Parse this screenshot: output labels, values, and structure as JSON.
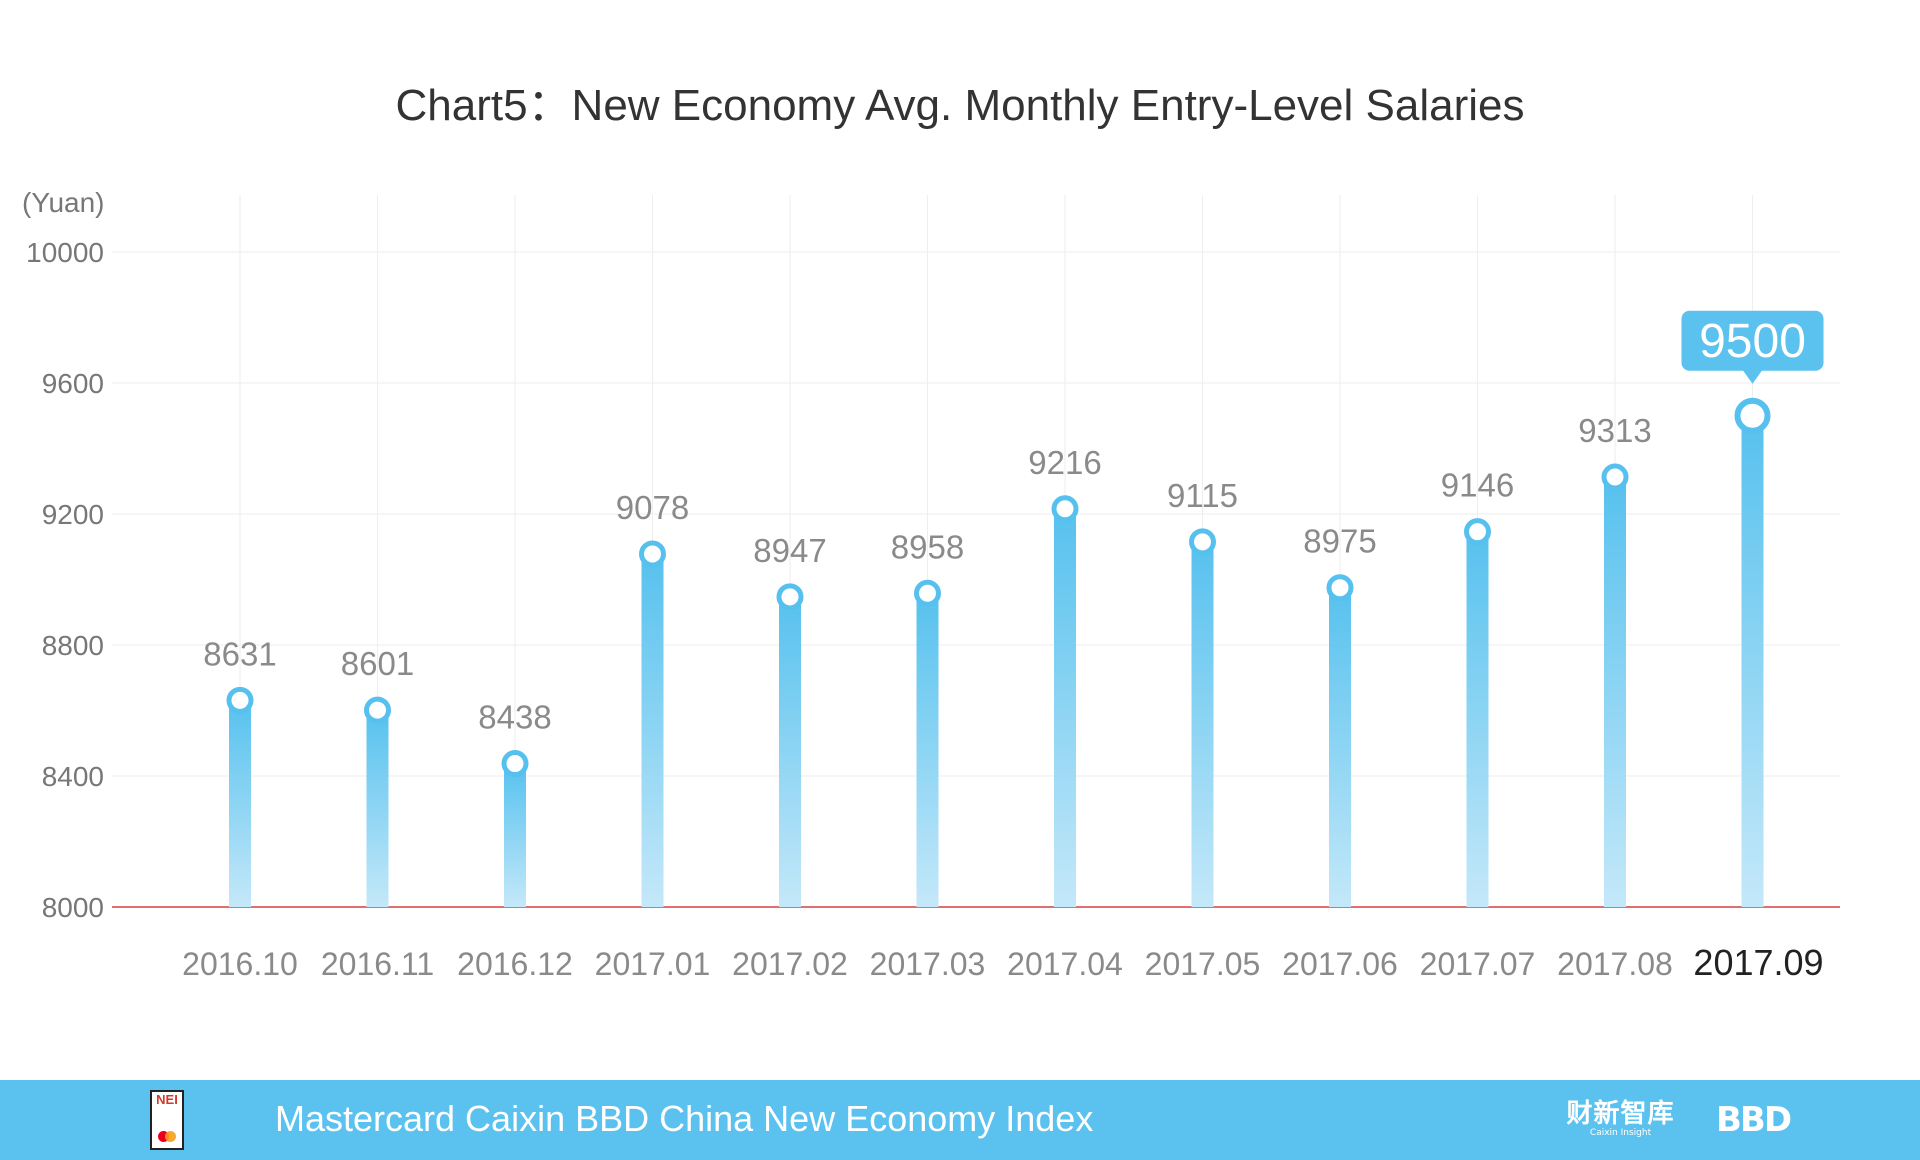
{
  "chart_data": {
    "type": "bar",
    "title": "Chart5：New Economy Avg. Monthly Entry-Level Salaries",
    "ylabel": "(Yuan)",
    "xlabel": "",
    "ylim": [
      8000,
      10000
    ],
    "yticks": [
      8000,
      8400,
      8800,
      9200,
      9600,
      10000
    ],
    "grid": true,
    "categories": [
      "2016.10",
      "2016.11",
      "2016.12",
      "2017.01",
      "2017.02",
      "2017.03",
      "2017.04",
      "2017.05",
      "2017.06",
      "2017.07",
      "2017.08",
      "2017.09"
    ],
    "values": [
      8631,
      8601,
      8438,
      9078,
      8947,
      8958,
      9216,
      9115,
      8975,
      9146,
      9313,
      9500
    ],
    "highlight": {
      "category": "2017.09",
      "value": "9500"
    }
  },
  "footer": {
    "title": "Mastercard Caixin BBD China New Economy Index",
    "logo_left_text": "NEI",
    "logo_caixin_cn": "财新智库",
    "logo_caixin_en": "Caixin Insight",
    "logo_bbd": "BBD"
  },
  "colors": {
    "bar_top": "#56c1ee",
    "bar_bottom": "#c4e8f9",
    "accent": "#5bc2ef",
    "baseline": "#e07070",
    "grid": "#eeeeee"
  }
}
